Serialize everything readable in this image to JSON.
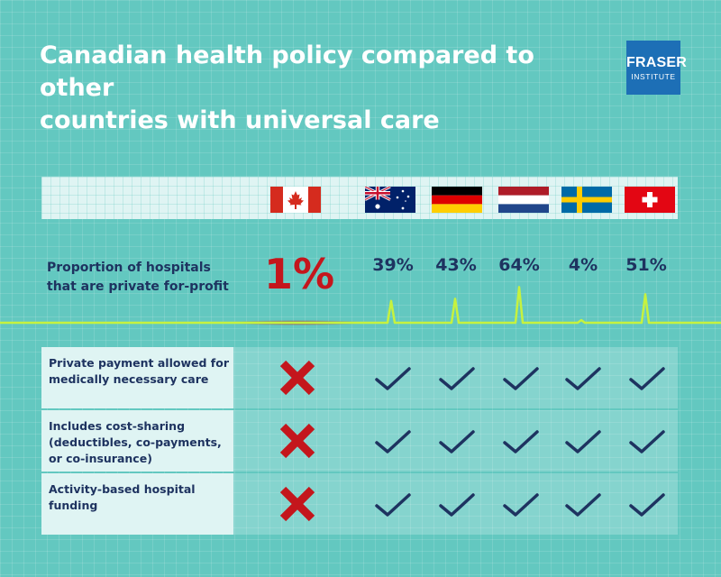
{
  "title": {
    "line1": "Canadian health policy compared to other",
    "line2": "countries with universal care"
  },
  "logo": {
    "line1": "FRASER",
    "line2": "INSTITUTE",
    "color": "#1d6fb6"
  },
  "countries": [
    "canada-flag",
    "australia-flag",
    "germany-flag",
    "netherlands-flag",
    "sweden-flag",
    "switzerland-flag"
  ],
  "chart_data": {
    "type": "table",
    "metric": {
      "label_line1": "Proportion of hospitals",
      "label_line2": "that are private for-profit",
      "canada_display": "1%",
      "display": [
        "39%",
        "43%",
        "64%",
        "4%",
        "51%"
      ],
      "values": [
        1,
        39,
        43,
        64,
        4,
        51
      ]
    },
    "rows": [
      {
        "lines": [
          "Private payment allowed for",
          "medically necessary care"
        ],
        "values": [
          false,
          true,
          true,
          true,
          true,
          true
        ]
      },
      {
        "lines": [
          "Includes cost-sharing",
          "(deductibles, co-payments,",
          "or co-insurance)"
        ],
        "values": [
          false,
          true,
          true,
          true,
          true,
          true
        ]
      },
      {
        "lines": [
          "Activity-based hospital",
          "funding"
        ],
        "values": [
          false,
          true,
          true,
          true,
          true,
          true
        ]
      }
    ]
  },
  "colors": {
    "background": "#63c8c0",
    "navy": "#1e3360",
    "red": "#c4161c",
    "ecg": "#c6f23e"
  }
}
